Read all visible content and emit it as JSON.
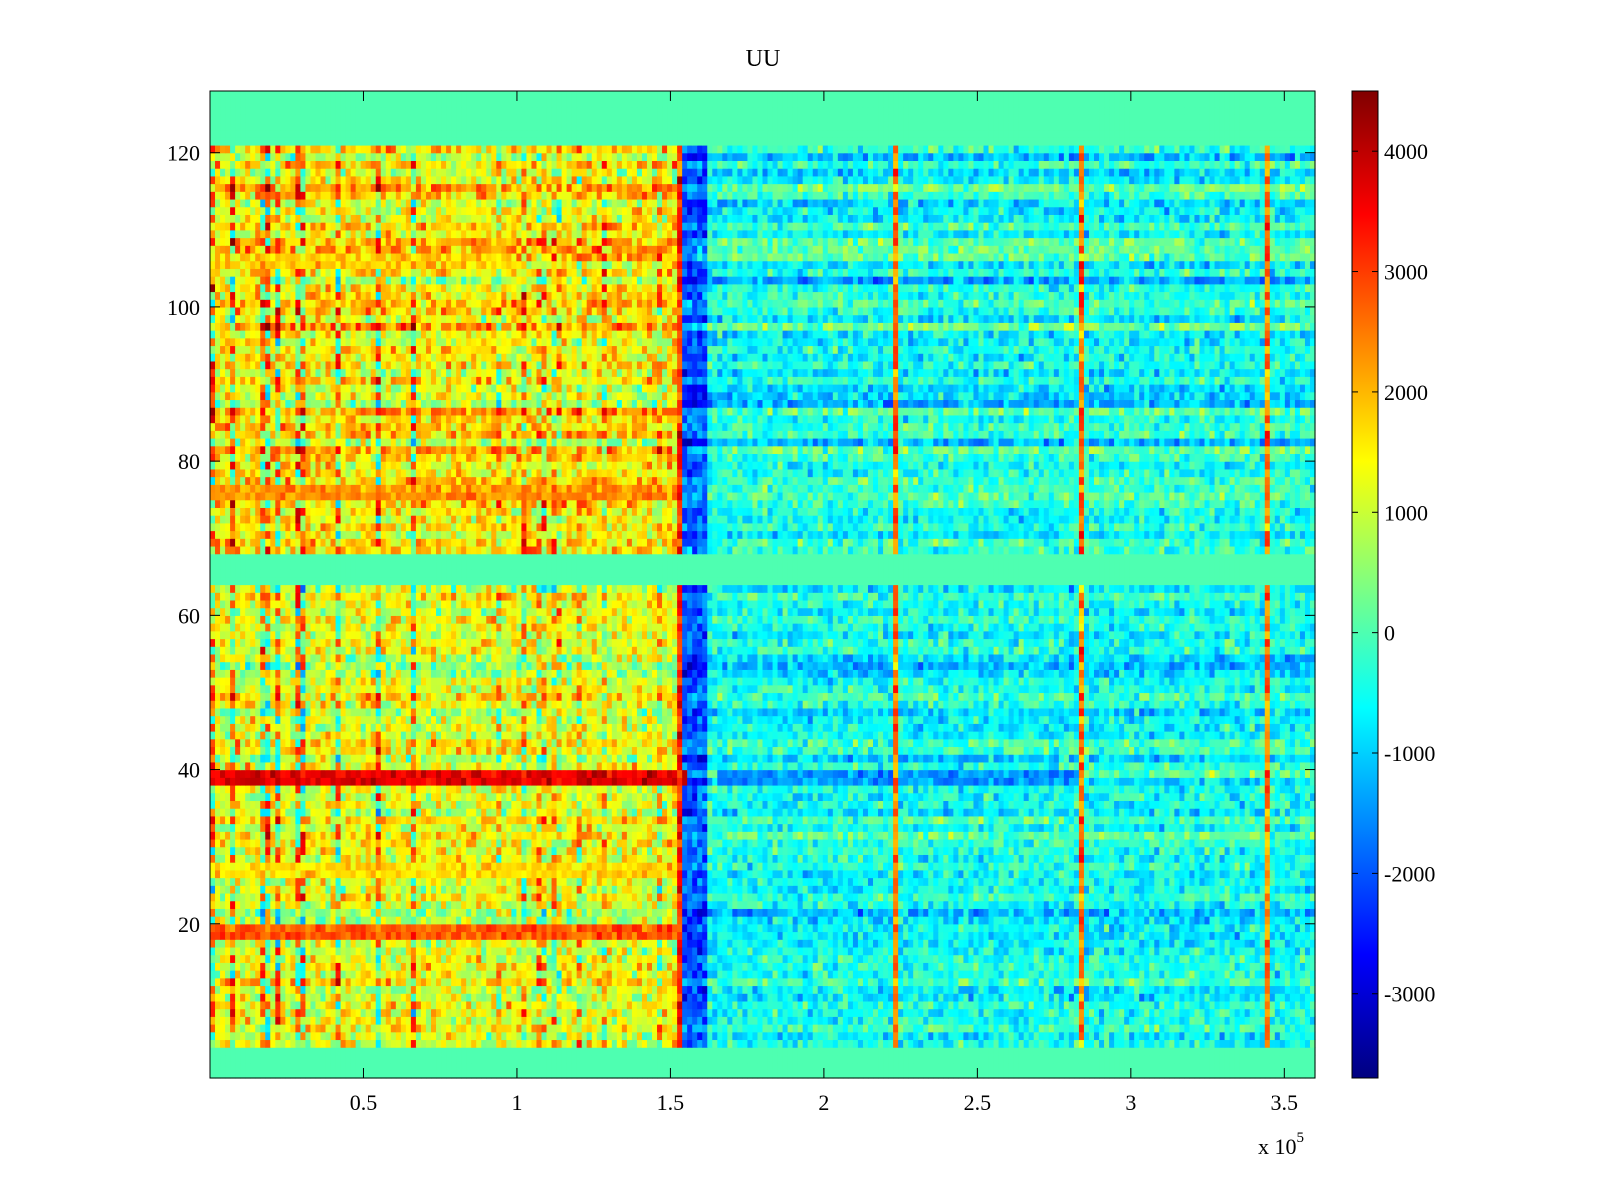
{
  "chart_data": {
    "type": "heatmap",
    "title": "UU",
    "xlabel": "",
    "ylabel": "",
    "x_exponent_label": "x 10",
    "x_exponent_power": "5",
    "xlim": [
      0,
      3.6
    ],
    "ylim": [
      0,
      128
    ],
    "x_ticks": [
      0.5,
      1,
      1.5,
      2,
      2.5,
      3,
      3.5
    ],
    "x_tick_labels": [
      "0.5",
      "1",
      "1.5",
      "2",
      "2.5",
      "3",
      "3.5"
    ],
    "y_ticks": [
      20,
      40,
      60,
      80,
      100,
      120
    ],
    "y_tick_labels": [
      "20",
      "40",
      "60",
      "80",
      "100",
      "120"
    ],
    "colormap": "jet",
    "clim": [
      -3700,
      4500
    ],
    "colorbar_ticks": [
      4000,
      3000,
      2000,
      1000,
      0,
      -1000,
      -2000,
      -3000
    ],
    "colorbar_tick_labels": [
      "4000",
      "3000",
      "2000",
      "1000",
      "0",
      "-1000",
      "-2000",
      "-3000"
    ],
    "grid": false,
    "zero_value_rows": [
      [
        0,
        4
      ],
      [
        64,
        68
      ],
      [
        121,
        128
      ]
    ],
    "regions": [
      {
        "x_range": [
          0,
          1.53
        ],
        "y_range": [
          68,
          121
        ],
        "typical_value": 1500
      },
      {
        "x_range": [
          0,
          1.53
        ],
        "y_range": [
          4,
          64
        ],
        "typical_value": 1200
      },
      {
        "x_range": [
          1.53,
          1.62
        ],
        "y_range": [
          4,
          121
        ],
        "typical_value": -2000
      },
      {
        "x_range": [
          1.62,
          3.6
        ],
        "y_range": [
          4,
          121
        ],
        "typical_value": -500
      }
    ],
    "horizontal_bands": [
      {
        "y": 39,
        "x_range": [
          0,
          1.55
        ],
        "value": 3700
      },
      {
        "y": 39,
        "x_range": [
          1.65,
          2.85
        ],
        "value": -1500
      },
      {
        "y": 19,
        "x_range": [
          0,
          1.53
        ],
        "value": 2800
      },
      {
        "y": 27,
        "x_range": [
          0,
          1.53
        ],
        "value": 1700
      },
      {
        "y": 76,
        "x_range": [
          0,
          1.53
        ],
        "value": 2300
      },
      {
        "y": 106,
        "x_range": [
          0,
          1.0
        ],
        "value": 1800
      }
    ],
    "vertical_lines": [
      {
        "x": 1.53,
        "value": 3200
      },
      {
        "x": 2.23,
        "value": 2500
      },
      {
        "x": 2.84,
        "value": 2500
      },
      {
        "x": 3.45,
        "value": 2500
      }
    ]
  }
}
